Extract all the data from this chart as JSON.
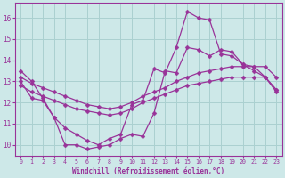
{
  "xlabel": "Windchill (Refroidissement éolien,°C)",
  "xlim": [
    -0.5,
    23.5
  ],
  "ylim": [
    9.5,
    16.7
  ],
  "yticks": [
    10,
    11,
    12,
    13,
    14,
    15,
    16
  ],
  "xticks": [
    0,
    1,
    2,
    3,
    4,
    5,
    6,
    7,
    8,
    9,
    10,
    11,
    12,
    13,
    14,
    15,
    16,
    17,
    18,
    19,
    20,
    21,
    22,
    23
  ],
  "background_color": "#cde8e8",
  "grid_color": "#aad0d0",
  "line_color": "#993399",
  "series1_y": [
    13.5,
    13.0,
    12.2,
    11.3,
    10.8,
    10.5,
    10.2,
    10.0,
    10.3,
    10.5,
    11.9,
    12.1,
    13.6,
    13.4,
    14.6,
    16.3,
    16.0,
    15.9,
    14.3,
    14.2,
    13.8,
    13.7,
    13.2,
    12.5
  ],
  "series2_y": [
    13.0,
    12.2,
    12.1,
    11.3,
    10.0,
    10.0,
    9.8,
    9.9,
    10.0,
    10.3,
    10.5,
    10.4,
    11.5,
    13.5,
    13.4,
    14.6,
    14.5,
    14.2,
    14.5,
    14.4,
    13.8,
    13.5,
    13.2,
    12.6
  ],
  "series3_y": [
    12.8,
    12.5,
    12.3,
    12.1,
    11.9,
    11.7,
    11.6,
    11.5,
    11.4,
    11.5,
    11.7,
    12.0,
    12.2,
    12.4,
    12.6,
    12.8,
    12.9,
    13.0,
    13.1,
    13.2,
    13.2,
    13.2,
    13.2,
    12.6
  ],
  "series4_y": [
    13.2,
    12.9,
    12.7,
    12.5,
    12.3,
    12.1,
    11.9,
    11.8,
    11.7,
    11.8,
    12.0,
    12.3,
    12.5,
    12.7,
    13.0,
    13.2,
    13.4,
    13.5,
    13.6,
    13.7,
    13.7,
    13.7,
    13.7,
    13.2
  ]
}
